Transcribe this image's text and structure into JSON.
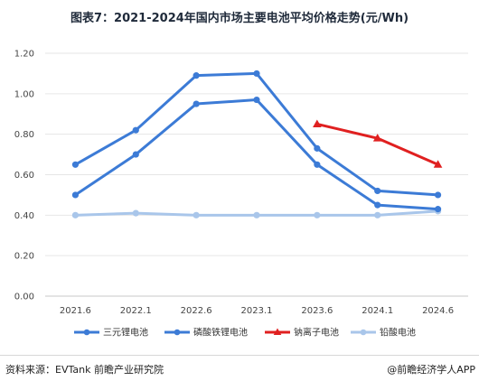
{
  "title": "图表7：2021-2024年国内市场主要电池平均价格走势(元/Wh)",
  "source": "资料来源：EVTank 前瞻产业研究院",
  "brand": "@前瞻经济学人APP",
  "colors": {
    "sanyuan": "#3c7bd6",
    "lfp": "#3c7bd6",
    "sodium": "#e02020",
    "lead": "#a9c6ea",
    "grid": "#e6e6e6",
    "axis": "#c8c8c8"
  },
  "chart_data": {
    "type": "line",
    "categories": [
      "2021.6",
      "2022.1",
      "2022.6",
      "2023.1",
      "2023.6",
      "2024.1",
      "2024.6"
    ],
    "ylim": [
      0,
      1.2
    ],
    "yticks": [
      "0.00",
      "0.20",
      "0.40",
      "0.60",
      "0.80",
      "1.00",
      "1.20"
    ],
    "grid": true,
    "legend_position": "bottom",
    "series": [
      {
        "name": "三元锂电池",
        "marker": "circle",
        "values": [
          0.65,
          0.82,
          1.09,
          1.1,
          0.73,
          0.52,
          0.5
        ]
      },
      {
        "name": "磷酸铁锂电池",
        "marker": "circle",
        "values": [
          0.5,
          0.7,
          0.95,
          0.97,
          0.65,
          0.45,
          0.43
        ]
      },
      {
        "name": "钠离子电池",
        "marker": "triangle",
        "values": [
          null,
          null,
          null,
          null,
          0.85,
          0.78,
          0.65
        ]
      },
      {
        "name": "铅酸电池",
        "marker": "circle",
        "values": [
          0.4,
          0.41,
          0.4,
          0.4,
          0.4,
          0.4,
          0.42
        ]
      }
    ]
  }
}
